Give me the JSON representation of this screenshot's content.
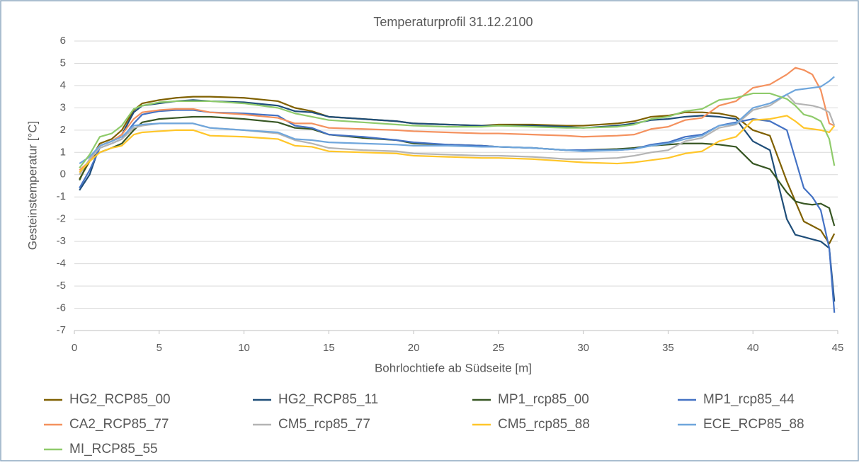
{
  "chart_data": {
    "type": "line",
    "title": "Temperaturprofil 31.12.2100",
    "x_label": "Bohrlochtiefe ab Südseite [m]",
    "y_label": "Gesteinstemperatur [°C]",
    "xlim": [
      0,
      45
    ],
    "xticks": [
      0,
      5,
      10,
      15,
      20,
      25,
      30,
      35,
      40,
      45
    ],
    "ylim": [
      -7,
      6
    ],
    "yticks": [
      -7,
      -6,
      -5,
      -4,
      -3,
      -2,
      -1,
      0,
      1,
      2,
      3,
      4,
      5,
      6
    ],
    "grid": true,
    "legend": "bottom",
    "x": [
      0.3,
      0.9,
      1.5,
      2.2,
      2.8,
      3.5,
      4,
      5,
      6,
      7,
      8,
      10,
      12,
      13,
      14,
      15,
      17,
      19,
      20,
      22,
      24,
      25,
      27,
      29,
      30,
      32,
      33,
      34,
      35,
      36,
      37,
      38,
      39,
      40,
      41,
      42,
      42.5,
      43,
      43.5,
      44,
      44.5,
      44.8
    ],
    "series": [
      {
        "name": "HG2_RCP85_00",
        "color": "#7f6000",
        "values": [
          -0.2,
          0.6,
          1.4,
          1.6,
          2.0,
          2.9,
          3.2,
          3.35,
          3.45,
          3.5,
          3.5,
          3.45,
          3.3,
          3.0,
          2.85,
          2.6,
          2.5,
          2.4,
          2.3,
          2.25,
          2.2,
          2.25,
          2.25,
          2.2,
          2.2,
          2.3,
          2.4,
          2.6,
          2.65,
          2.8,
          2.8,
          2.75,
          2.6,
          2.0,
          1.75,
          -0.3,
          -1.2,
          -2.1,
          -2.3,
          -2.5,
          -3.1,
          -2.65
        ]
      },
      {
        "name": "HG2_RCP85_11",
        "color": "#1f4e79",
        "values": [
          -0.7,
          0.0,
          1.3,
          1.5,
          1.8,
          2.8,
          3.1,
          3.2,
          3.3,
          3.35,
          3.3,
          3.25,
          3.1,
          2.85,
          2.8,
          2.6,
          2.5,
          2.4,
          2.3,
          2.25,
          2.2,
          2.2,
          2.2,
          2.15,
          2.1,
          2.2,
          2.3,
          2.45,
          2.5,
          2.6,
          2.65,
          2.6,
          2.5,
          1.5,
          1.1,
          -2.0,
          -2.7,
          -2.8,
          -2.9,
          -3.0,
          -3.3,
          -5.7
        ]
      },
      {
        "name": "MP1_rcp85_00",
        "color": "#375623",
        "values": [
          -0.25,
          0.7,
          1.0,
          1.2,
          1.4,
          2.0,
          2.35,
          2.5,
          2.55,
          2.6,
          2.6,
          2.5,
          2.35,
          2.1,
          2.05,
          1.8,
          1.65,
          1.55,
          1.4,
          1.35,
          1.3,
          1.25,
          1.2,
          1.1,
          1.1,
          1.15,
          1.2,
          1.3,
          1.35,
          1.4,
          1.4,
          1.35,
          1.25,
          0.5,
          0.25,
          -0.8,
          -1.2,
          -1.3,
          -1.35,
          -1.3,
          -1.5,
          -2.3
        ]
      },
      {
        "name": "MP1_rcp85_44",
        "color": "#4472c4",
        "values": [
          -0.6,
          0.2,
          1.2,
          1.4,
          1.6,
          2.3,
          2.7,
          2.85,
          2.9,
          2.9,
          2.8,
          2.75,
          2.65,
          2.2,
          2.1,
          1.8,
          1.7,
          1.55,
          1.45,
          1.35,
          1.3,
          1.25,
          1.2,
          1.1,
          1.1,
          1.1,
          1.15,
          1.35,
          1.45,
          1.7,
          1.8,
          2.2,
          2.35,
          2.5,
          2.4,
          2.0,
          0.7,
          -0.6,
          -1.0,
          -1.6,
          -3.3,
          -6.2
        ]
      },
      {
        "name": "CA2_RCP85_77",
        "color": "#f4915e",
        "values": [
          0.2,
          0.6,
          1.3,
          1.5,
          1.8,
          2.5,
          2.8,
          2.9,
          2.95,
          2.95,
          2.8,
          2.7,
          2.55,
          2.3,
          2.3,
          2.1,
          2.05,
          2.0,
          1.95,
          1.9,
          1.85,
          1.85,
          1.8,
          1.75,
          1.7,
          1.75,
          1.8,
          2.05,
          2.15,
          2.45,
          2.55,
          3.1,
          3.3,
          3.9,
          4.05,
          4.5,
          4.8,
          4.7,
          4.5,
          3.8,
          2.3,
          2.2
        ]
      },
      {
        "name": "CM5_rcp85_77",
        "color": "#b4b4b4",
        "values": [
          0.0,
          0.7,
          1.2,
          1.4,
          1.6,
          2.1,
          2.2,
          2.3,
          2.3,
          2.3,
          2.1,
          2.0,
          1.85,
          1.55,
          1.4,
          1.2,
          1.1,
          1.05,
          0.95,
          0.9,
          0.85,
          0.85,
          0.8,
          0.7,
          0.7,
          0.75,
          0.85,
          1.0,
          1.1,
          1.5,
          1.65,
          2.1,
          2.25,
          2.9,
          3.1,
          3.6,
          3.2,
          3.15,
          3.1,
          3.0,
          2.8,
          2.2
        ]
      },
      {
        "name": "CM5_rcp85_88",
        "color": "#ffc62a",
        "values": [
          0.1,
          0.6,
          1.0,
          1.2,
          1.3,
          1.8,
          1.9,
          1.95,
          2.0,
          2.0,
          1.75,
          1.7,
          1.6,
          1.3,
          1.25,
          1.05,
          1.0,
          0.95,
          0.85,
          0.8,
          0.75,
          0.75,
          0.7,
          0.6,
          0.55,
          0.5,
          0.55,
          0.65,
          0.75,
          0.95,
          1.05,
          1.5,
          1.7,
          2.45,
          2.5,
          2.65,
          2.4,
          2.1,
          2.05,
          2.0,
          1.9,
          2.2
        ]
      },
      {
        "name": "ECE_RCP85_88",
        "color": "#6fa6dc",
        "values": [
          0.5,
          0.8,
          1.3,
          1.5,
          1.7,
          2.2,
          2.25,
          2.3,
          2.3,
          2.3,
          2.1,
          2.0,
          1.9,
          1.6,
          1.55,
          1.45,
          1.4,
          1.35,
          1.3,
          1.3,
          1.25,
          1.25,
          1.2,
          1.1,
          1.05,
          1.1,
          1.15,
          1.3,
          1.4,
          1.6,
          1.75,
          2.2,
          2.3,
          3.0,
          3.2,
          3.6,
          3.8,
          3.85,
          3.9,
          3.95,
          4.2,
          4.4
        ]
      },
      {
        "name": "MI_RCP85_55",
        "color": "#8fcb6b",
        "values": [
          0.3,
          0.9,
          1.7,
          1.85,
          2.2,
          2.95,
          3.1,
          3.25,
          3.3,
          3.3,
          3.3,
          3.2,
          3.0,
          2.75,
          2.6,
          2.45,
          2.35,
          2.25,
          2.2,
          2.15,
          2.15,
          2.2,
          2.15,
          2.1,
          2.1,
          2.15,
          2.25,
          2.5,
          2.6,
          2.85,
          2.95,
          3.35,
          3.45,
          3.65,
          3.65,
          3.4,
          3.1,
          2.7,
          2.6,
          2.4,
          1.6,
          0.4
        ]
      }
    ]
  }
}
